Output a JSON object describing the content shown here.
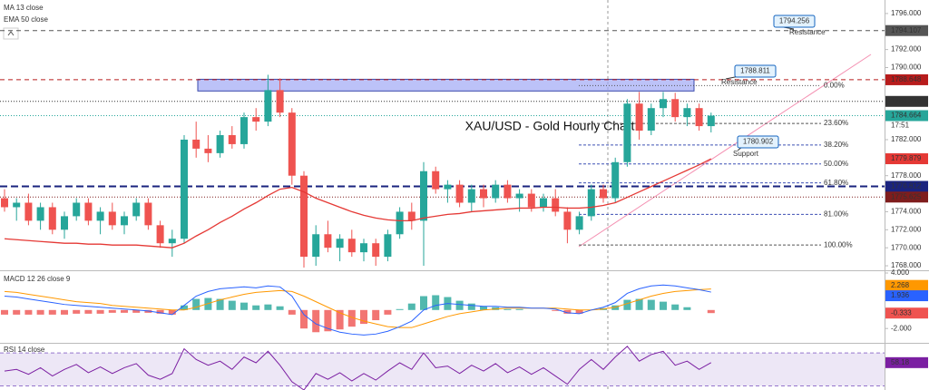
{
  "chart_data": [
    {
      "type": "candlestick",
      "title": "XAU/USD - Gold Hourly Chart",
      "indicators": [
        "MA 13 close",
        "EMA 50 close"
      ],
      "ylim": [
        1767.5,
        1797.5
      ],
      "yticks": [
        {
          "value": 1768,
          "label": "1768.000"
        },
        {
          "value": 1770,
          "label": "1770.000"
        },
        {
          "value": 1772,
          "label": "1772.000"
        },
        {
          "value": 1774,
          "label": "1774.000"
        },
        {
          "value": 1778,
          "label": "1778.000"
        },
        {
          "value": 1782,
          "label": "1782.000"
        },
        {
          "value": 1790,
          "label": "1790.000"
        },
        {
          "value": 1792,
          "label": "1792.000"
        },
        {
          "value": 1796,
          "label": "1796.000"
        }
      ],
      "grid": false,
      "up_color": "#26a69a",
      "down_color": "#ef5350",
      "candles": [
        [
          1775.5,
          1776.5,
          1774,
          1774.5
        ],
        [
          1774.5,
          1775.5,
          1773,
          1775
        ],
        [
          1775,
          1776,
          1772.5,
          1773
        ],
        [
          1773,
          1775,
          1772,
          1774.5
        ],
        [
          1774.5,
          1775,
          1771.5,
          1772
        ],
        [
          1772,
          1774,
          1771,
          1773.5
        ],
        [
          1773.5,
          1775.5,
          1773,
          1775
        ],
        [
          1775,
          1775.5,
          1772.5,
          1773
        ],
        [
          1773,
          1774.5,
          1771.5,
          1774
        ],
        [
          1774,
          1775,
          1772,
          1772.5
        ],
        [
          1772.5,
          1774,
          1771.5,
          1773.5
        ],
        [
          1773.5,
          1775.5,
          1773,
          1775
        ],
        [
          1775,
          1775.5,
          1772,
          1772.5
        ],
        [
          1772.5,
          1773,
          1770,
          1770.5
        ],
        [
          1770.5,
          1772,
          1769,
          1771
        ],
        [
          1771,
          1782.5,
          1770.5,
          1782
        ],
        [
          1782,
          1784,
          1780,
          1781
        ],
        [
          1781,
          1782.5,
          1779.5,
          1780.5
        ],
        [
          1780.5,
          1783,
          1780,
          1782.5
        ],
        [
          1782.5,
          1783.5,
          1781,
          1781.5
        ],
        [
          1781.5,
          1785,
          1781,
          1784.5
        ],
        [
          1784.5,
          1785.5,
          1783,
          1784
        ],
        [
          1784,
          1789.2,
          1783.5,
          1787.5
        ],
        [
          1787.5,
          1788.8,
          1784.5,
          1785
        ],
        [
          1785,
          1785.5,
          1777,
          1778
        ],
        [
          1778,
          1778.5,
          1767.8,
          1769
        ],
        [
          1769,
          1772.5,
          1768,
          1771.5
        ],
        [
          1771.5,
          1773,
          1769.5,
          1770
        ],
        [
          1770,
          1771.5,
          1768.5,
          1771
        ],
        [
          1771,
          1772,
          1769,
          1769.5
        ],
        [
          1769.5,
          1771,
          1768.5,
          1770.5
        ],
        [
          1770.5,
          1771,
          1768,
          1769
        ],
        [
          1769,
          1772,
          1768.5,
          1771.5
        ],
        [
          1771.5,
          1774.5,
          1771,
          1774
        ],
        [
          1774,
          1775,
          1772,
          1773
        ],
        [
          1773,
          1779.5,
          1768,
          1778.5
        ],
        [
          1778.5,
          1779,
          1776,
          1776.5
        ],
        [
          1776.5,
          1777.5,
          1775,
          1777
        ],
        [
          1777,
          1777.5,
          1774.5,
          1775
        ],
        [
          1775,
          1777,
          1774,
          1776.5
        ],
        [
          1776.5,
          1777,
          1774.5,
          1775.5
        ],
        [
          1775.5,
          1777.5,
          1775,
          1777
        ],
        [
          1777,
          1777.5,
          1775,
          1775.5
        ],
        [
          1775.5,
          1776.5,
          1774,
          1776
        ],
        [
          1776,
          1776.5,
          1774,
          1774.5
        ],
        [
          1774.5,
          1776,
          1774,
          1775.5
        ],
        [
          1775.5,
          1776.5,
          1773.5,
          1774
        ],
        [
          1774,
          1774.5,
          1770.5,
          1772
        ],
        [
          1772,
          1774,
          1771.5,
          1773.5
        ],
        [
          1773.5,
          1777,
          1773,
          1776.5
        ],
        [
          1776.5,
          1777,
          1775,
          1775.5
        ],
        [
          1775.5,
          1780,
          1775,
          1779.5
        ],
        [
          1779.5,
          1786.5,
          1779,
          1786
        ],
        [
          1786,
          1787.3,
          1782,
          1783
        ],
        [
          1783,
          1786,
          1782.5,
          1785.5
        ],
        [
          1785.5,
          1787.3,
          1784.5,
          1786.5
        ],
        [
          1786.5,
          1787.2,
          1784,
          1784.5
        ],
        [
          1784.5,
          1786,
          1783.5,
          1785.5
        ],
        [
          1785.5,
          1786,
          1783,
          1783.5
        ],
        [
          1783.5,
          1785,
          1782.8,
          1784.664
        ]
      ],
      "ema": {
        "color": "#e53935",
        "values": [
          1771,
          1770.9,
          1770.8,
          1770.7,
          1770.6,
          1770.5,
          1770.5,
          1770.4,
          1770.4,
          1770.3,
          1770.3,
          1770.3,
          1770.2,
          1770.1,
          1770,
          1770.5,
          1771.3,
          1772,
          1772.8,
          1773.5,
          1774.3,
          1775,
          1775.8,
          1776.5,
          1776.7,
          1776.2,
          1775.5,
          1775,
          1774.5,
          1774,
          1773.6,
          1773.3,
          1773.1,
          1773,
          1773,
          1773.3,
          1773.5,
          1773.7,
          1773.8,
          1774,
          1774.1,
          1774.2,
          1774.3,
          1774.4,
          1774.4,
          1774.5,
          1774.5,
          1774.4,
          1774.4,
          1774.5,
          1774.7,
          1775,
          1775.6,
          1776.2,
          1776.8,
          1777.4,
          1778,
          1778.6,
          1779.2,
          1779.879
        ]
      },
      "price_lines": [
        {
          "value": 1794.107,
          "color": "#555555"
        },
        {
          "value": 1788.648,
          "color": "#b71c1c"
        },
        {
          "value": 1786.246,
          "color": "#333333"
        },
        {
          "value": 1784.664,
          "color": "#26a69a"
        },
        {
          "value": 1779.879,
          "color": "#e53935"
        },
        {
          "value": 1776.812,
          "color": "#1a237e"
        },
        {
          "value": 1775.625,
          "color": "#7f1d1d"
        }
      ],
      "countdown": "17:51",
      "callouts": [
        {
          "value": 1794.256,
          "text": "Resistance"
        },
        {
          "value": 1788.811,
          "text": "Resistance"
        },
        {
          "value": 1780.902,
          "text": "Support"
        }
      ],
      "zone": [
        1787.4,
        1788.7
      ],
      "fib_levels": [
        {
          "label": "0.00%",
          "price": 1788.0
        },
        {
          "label": "23.60%",
          "price": 1783.8
        },
        {
          "label": "38.20%",
          "price": 1781.4
        },
        {
          "label": "50.00%",
          "price": 1779.3
        },
        {
          "label": "61.80%",
          "price": 1777.2
        },
        {
          "label": "81.00%",
          "price": 1773.7
        },
        {
          "label": "100.00%",
          "price": 1770.3
        }
      ]
    },
    {
      "type": "macd",
      "title": "MACD 12 26 close 9",
      "ylim": [
        -3.55,
        4.1
      ],
      "yticks": [
        {
          "value": 4,
          "label": "4.000"
        },
        {
          "value": -2,
          "label": "-2.000"
        }
      ],
      "macd": {
        "color": "#2962ff",
        "values": [
          1.5,
          1.4,
          1.2,
          1.0,
          0.8,
          0.6,
          0.5,
          0.4,
          0.3,
          0.2,
          0.1,
          0.0,
          -0.1,
          -0.3,
          -0.5,
          0.5,
          1.5,
          2.0,
          2.3,
          2.4,
          2.5,
          2.4,
          2.6,
          2.5,
          1.5,
          -0.5,
          -1.5,
          -2.0,
          -2.4,
          -2.6,
          -2.7,
          -2.6,
          -2.3,
          -1.8,
          -1.2,
          0.0,
          0.5,
          0.7,
          0.6,
          0.5,
          0.4,
          0.4,
          0.3,
          0.3,
          0.2,
          0.2,
          0.1,
          -0.3,
          -0.4,
          0,
          0.3,
          0.8,
          1.8,
          2.3,
          2.6,
          2.7,
          2.6,
          2.4,
          2.2,
          1.936
        ]
      },
      "signal": {
        "color": "#ff9800",
        "values": [
          2.0,
          1.9,
          1.7,
          1.5,
          1.3,
          1.1,
          0.9,
          0.8,
          0.7,
          0.5,
          0.4,
          0.3,
          0.2,
          0.1,
          0,
          0,
          0.3,
          0.7,
          1.1,
          1.4,
          1.7,
          1.9,
          2.0,
          2.1,
          2.0,
          1.5,
          0.9,
          0.3,
          -0.3,
          -0.8,
          -1.2,
          -1.5,
          -1.8,
          -1.9,
          -1.9,
          -1.5,
          -1.1,
          -0.7,
          -0.4,
          -0.2,
          0,
          0.1,
          0.2,
          0.2,
          0.2,
          0.2,
          0.2,
          0.1,
          0,
          0,
          0.1,
          0.3,
          0.7,
          1.1,
          1.5,
          1.8,
          2.0,
          2.1,
          2.2,
          2.268
        ]
      },
      "histogram": {
        "up_color": "#26a69a",
        "down_color": "#ef5350",
        "values": [
          -0.5,
          -0.5,
          -0.5,
          -0.5,
          -0.5,
          -0.5,
          -0.4,
          -0.4,
          -0.4,
          -0.3,
          -0.3,
          -0.3,
          -0.3,
          -0.4,
          -0.5,
          0.5,
          1.2,
          1.3,
          1.2,
          1.0,
          0.8,
          0.5,
          0.6,
          0.4,
          -0.5,
          -2.0,
          -2.4,
          -2.3,
          -2.1,
          -1.8,
          -1.5,
          -1.1,
          -0.5,
          0.1,
          0.7,
          1.5,
          1.6,
          1.4,
          1.0,
          0.7,
          0.4,
          0.3,
          0.1,
          0.1,
          0,
          0,
          -0.1,
          -0.4,
          -0.4,
          0,
          0.2,
          0.5,
          1.1,
          1.2,
          1.1,
          0.9,
          0.6,
          0.3,
          0,
          -0.333
        ]
      }
    },
    {
      "type": "rsi",
      "title": "RSI 14 close",
      "ylim": [
        25,
        80
      ],
      "band": [
        30,
        70
      ],
      "color": "#7b1fa2",
      "values": [
        48,
        50,
        44,
        52,
        42,
        50,
        56,
        46,
        53,
        45,
        52,
        57,
        43,
        38,
        45,
        75,
        62,
        55,
        60,
        50,
        65,
        58,
        72,
        55,
        35,
        25,
        45,
        38,
        46,
        36,
        45,
        37,
        48,
        58,
        50,
        70,
        52,
        54,
        45,
        55,
        48,
        57,
        46,
        53,
        44,
        52,
        42,
        32,
        50,
        62,
        50,
        65,
        78,
        60,
        68,
        72,
        55,
        60,
        50,
        58.18
      ]
    }
  ]
}
